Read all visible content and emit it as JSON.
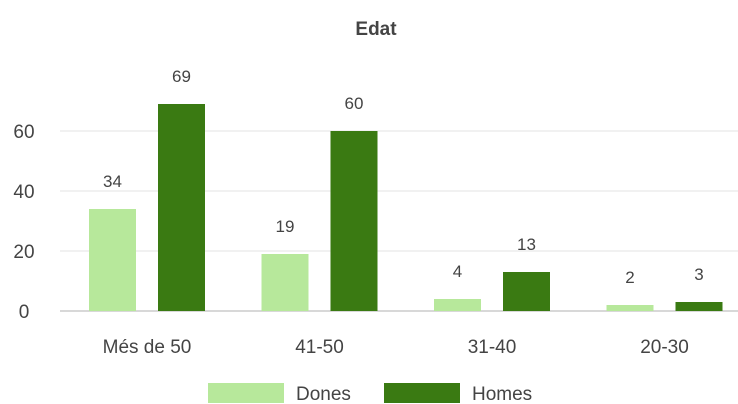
{
  "chart_data": {
    "type": "bar",
    "title": "Edat",
    "categories": [
      "Més de 50",
      "41-50",
      "31-40",
      "20-30"
    ],
    "series": [
      {
        "name": "Dones",
        "values": [
          34,
          19,
          4,
          2
        ],
        "color": "#b7e89b"
      },
      {
        "name": "Homes",
        "values": [
          69,
          60,
          13,
          3
        ],
        "color": "#3a7a12"
      }
    ],
    "yticks": [
      0,
      20,
      40,
      60
    ],
    "ylim": [
      0,
      70
    ],
    "grid": true,
    "legend_position": "bottom"
  }
}
